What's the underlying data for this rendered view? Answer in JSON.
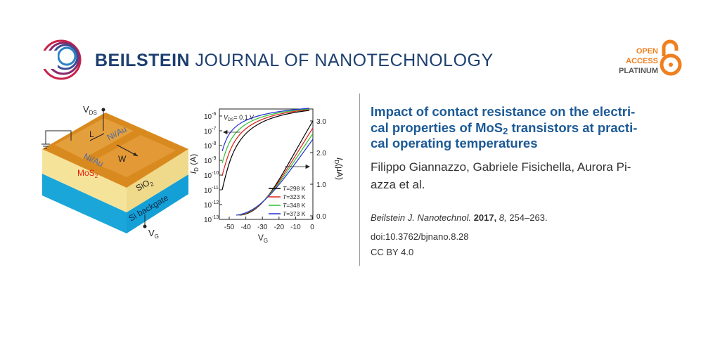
{
  "header": {
    "journal_bold": "BEILSTEIN",
    "journal_rest": "JOURNAL OF NANOTECHNOLOGY",
    "badge": [
      "OPEN",
      "ACCESS",
      "PLATINUM"
    ]
  },
  "figure": {
    "device": {
      "vds": {
        "main": "V",
        "sub": "DS"
      },
      "vg": {
        "main": "V",
        "sub": "G"
      },
      "contact_top": "Ni/Au",
      "contact_bottom": "Ni/Au",
      "length": "L",
      "width": "W",
      "channel": {
        "main": "MoS",
        "sub": "2"
      },
      "oxide": {
        "main": "SiO",
        "sub": "2"
      },
      "substrate": "Si backgate"
    },
    "graph": {
      "left_axis_label": {
        "main": "I",
        "sub": "D",
        "rest": " (A)"
      },
      "right_axis_label": {
        "main": "I",
        "sub": "D",
        "rest": "(μA)"
      },
      "x_axis_label": {
        "main": "V",
        "sub": "G"
      },
      "annotation": {
        "main": "V",
        "sub": "DS",
        "rest": "= 0.1 V"
      },
      "left_ticks": [
        {
          "base": "10",
          "exp": "-6"
        },
        {
          "base": "10",
          "exp": "-7"
        },
        {
          "base": "10",
          "exp": "-8"
        },
        {
          "base": "10",
          "exp": "-9"
        },
        {
          "base": "10",
          "exp": "-10"
        },
        {
          "base": "10",
          "exp": "-11"
        },
        {
          "base": "10",
          "exp": "-12"
        },
        {
          "base": "10",
          "exp": "-13"
        }
      ],
      "right_ticks": [
        "3.0",
        "2.0",
        "1.0",
        "0.0"
      ],
      "x_ticks": [
        "-50",
        "-40",
        "-30",
        "-20",
        "-10",
        "0"
      ],
      "legend": [
        {
          "var": "T",
          "rest": "=298 K",
          "color": "#000000"
        },
        {
          "var": "T",
          "rest": "=323 K",
          "color": "#e0201b"
        },
        {
          "var": "T",
          "rest": "=348 K",
          "color": "#2fc12f"
        },
        {
          "var": "T",
          "rest": "=373 K",
          "color": "#2430d6"
        }
      ]
    }
  },
  "article": {
    "title": {
      "line1": "Impact of contact resistance on the electri-",
      "line2_a": "cal properties of MoS",
      "line2_sub": "2",
      "line2_b": " transistors at practi-",
      "line3": "cal operating temperatures"
    },
    "authors": [
      "Filippo Giannazzo, Gabriele Fisichella, Aurora Pi-",
      "azza et al."
    ],
    "citation": {
      "journal": "Beilstein J. Nanotechnol.",
      "year": " 2017,",
      "volume": " 8,",
      "pages": " 254–263."
    },
    "doi": "doi:10.3762/bjnano.8.28",
    "license": "CC BY 4.0"
  }
}
